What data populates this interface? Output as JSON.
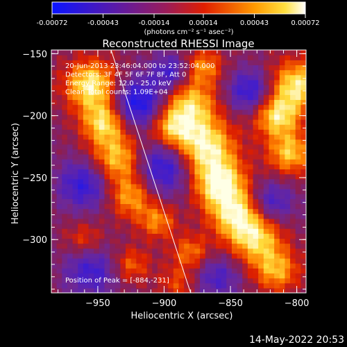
{
  "colorbar": {
    "tick_labels": [
      "-0.00072",
      "-0.00043",
      "-0.00014",
      "0.00014",
      "0.00043",
      "0.00072"
    ],
    "tick_values": [
      -0.00072,
      -0.00043,
      -0.00014,
      0.00014,
      0.00043,
      0.00072
    ],
    "units_label": "(photons cm⁻² s⁻¹ asec⁻²)"
  },
  "chart_data": {
    "type": "heatmap",
    "title": "Reconstructed RHESSI Image",
    "xlabel": "Heliocentric X (arcsec)",
    "ylabel": "Heliocentric Y (arcsec)",
    "xlim": [
      -985,
      -793
    ],
    "ylim": [
      -343,
      -147
    ],
    "x_ticks": [
      -950,
      -900,
      -850,
      -800
    ],
    "x_tick_labels": [
      "−950",
      "−900",
      "−850",
      "−800"
    ],
    "y_ticks": [
      -150,
      -200,
      -250,
      -300
    ],
    "y_tick_labels": [
      "−150",
      "−200",
      "−250",
      "−300"
    ],
    "colormap": "blue-purple-red-yellow-white",
    "info_lines": [
      "20-Jun-2013 23:46:04.000 to 23:52:04.000",
      "Detectors: 3F 4F 5F 6F 7F 8F, Att 0",
      "Energy Range: 12.0 - 25.0 keV",
      "Clean      Total counts: 1.09E+04"
    ],
    "peak_label": "Position of Peak = [-884,-231]",
    "peak": [
      -884,
      -231
    ],
    "limb_line": [
      [
        -940,
        -147
      ],
      [
        -880,
        -343
      ]
    ]
  },
  "footer": {
    "timestamp": "14-May-2022 20:53"
  }
}
